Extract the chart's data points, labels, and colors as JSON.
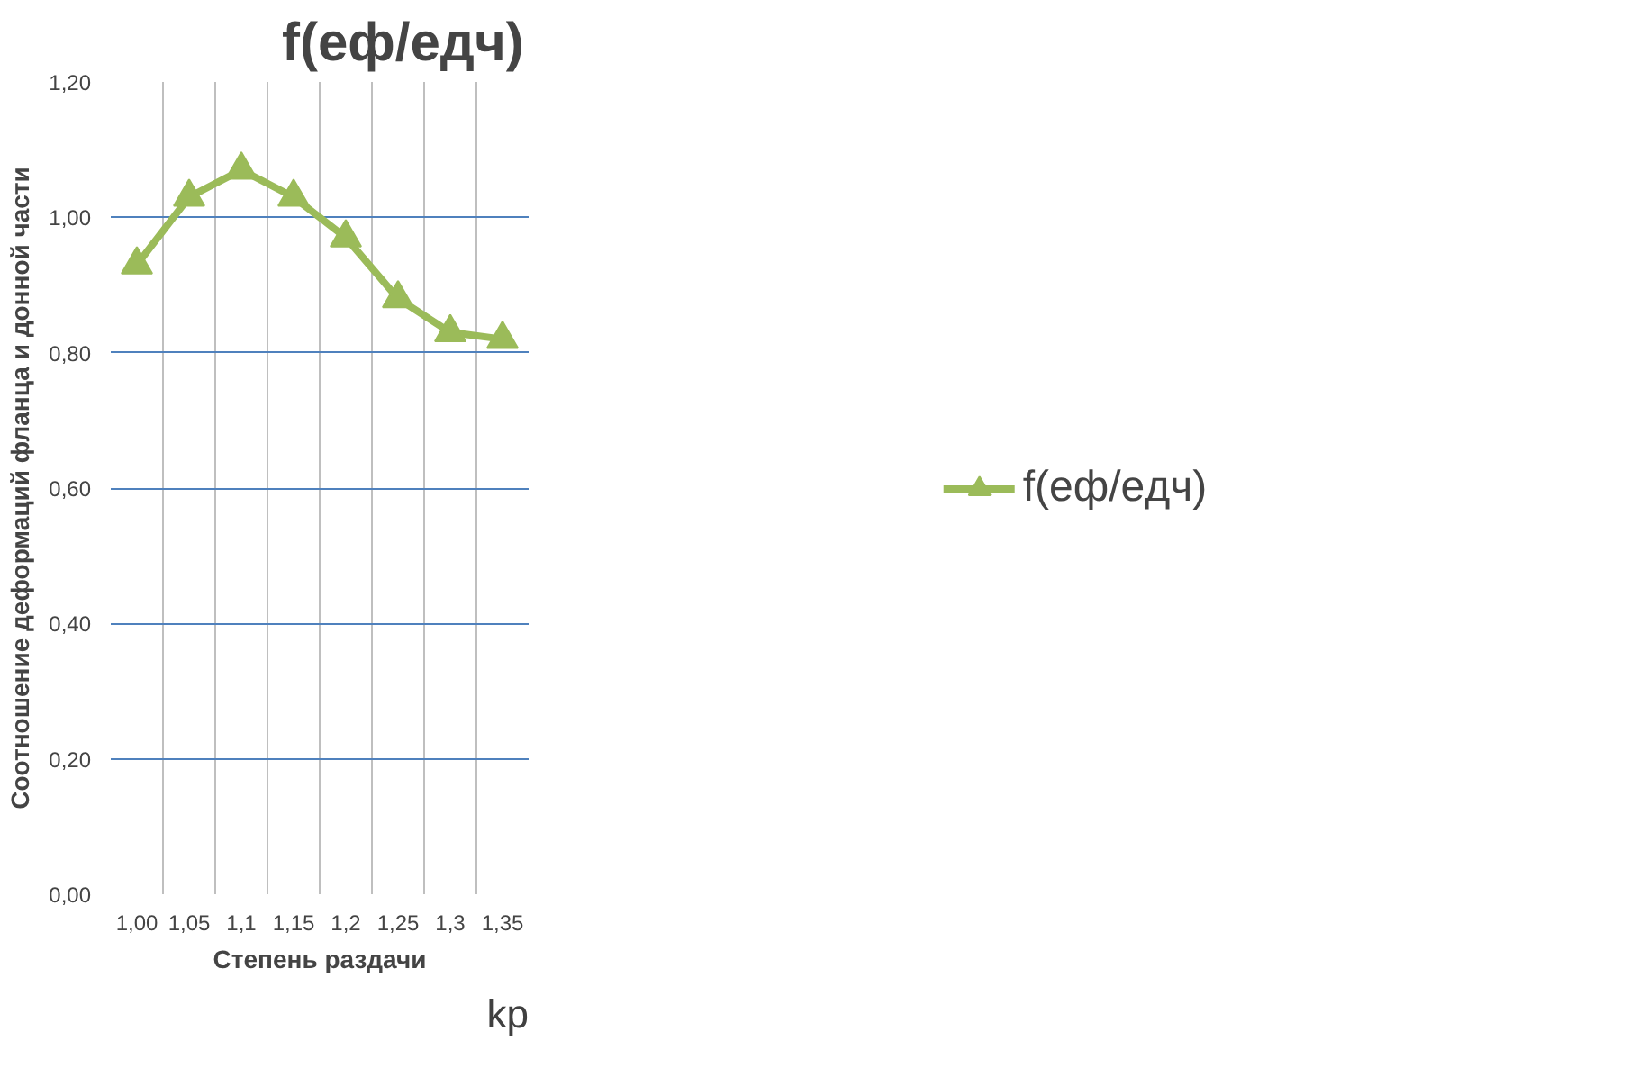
{
  "chart_data": {
    "type": "line",
    "title": "f(eф/eдч)",
    "xlabel": "Степень раздачи",
    "ylabel": "Соотношение деформаций фланца и донной части",
    "annotations": [
      "kp"
    ],
    "categories": [
      "1,00",
      "1,05",
      "1,1",
      "1,15",
      "1,2",
      "1,25",
      "1,3",
      "1,35"
    ],
    "series": [
      {
        "name": "f(eф/eдч)",
        "color": "#9bbb59",
        "values": [
          0.93,
          1.03,
          1.07,
          1.03,
          0.97,
          0.88,
          0.83,
          0.82
        ]
      }
    ],
    "ylim": [
      0,
      1.2
    ],
    "yticks": [
      {
        "value": 0,
        "label": "0,00"
      },
      {
        "value": 0.2,
        "label": "0,20"
      },
      {
        "value": 0.4,
        "label": "0,40"
      },
      {
        "value": 0.6,
        "label": "0,60"
      },
      {
        "value": 0.8,
        "label": "0,80"
      },
      {
        "value": 1.0,
        "label": "1,00"
      },
      {
        "value": 1.2,
        "label": "1,20"
      }
    ],
    "grid": true,
    "legend": "right",
    "marker": "triangle",
    "line_style": "solid"
  }
}
